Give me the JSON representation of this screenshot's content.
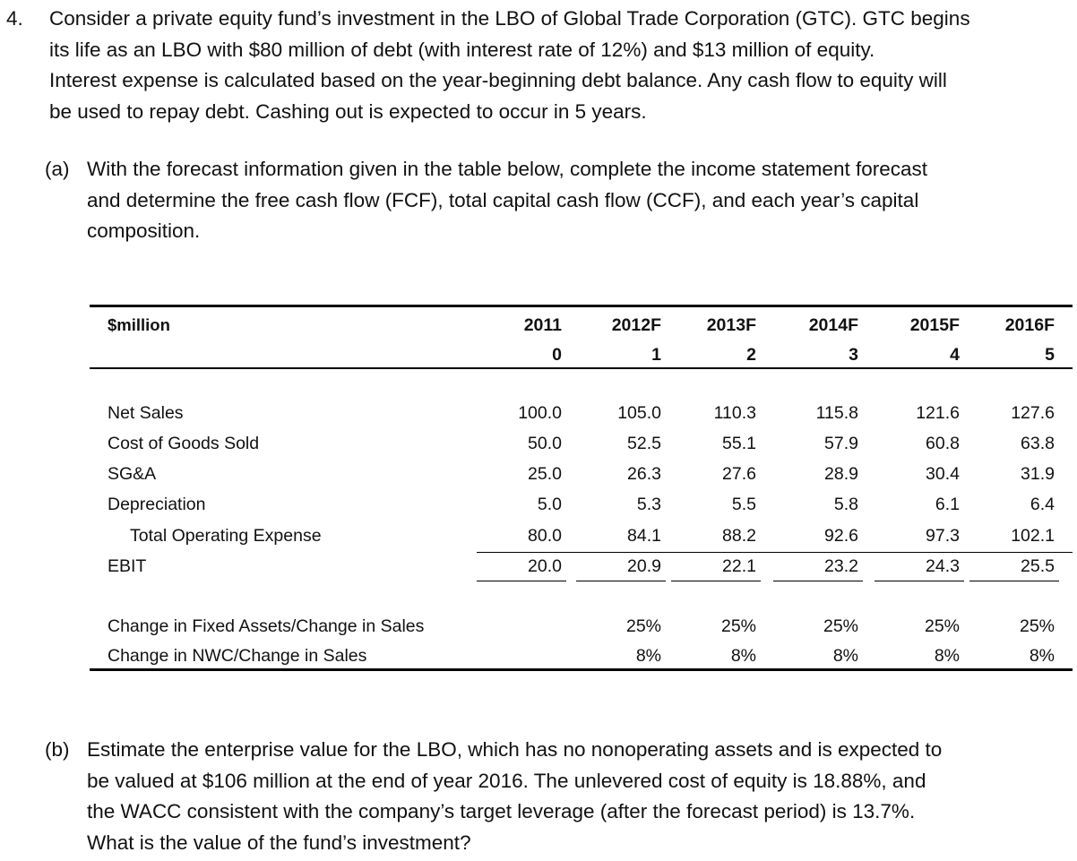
{
  "question": {
    "number": "4.",
    "lines": [
      "Consider a private equity fund’s investment in the LBO of Global Trade Corporation (GTC). GTC begins",
      "its life as an LBO with $80 million of debt (with interest rate of 12%) and $13 million of equity.",
      "Interest expense is calculated based on the year-beginning debt balance. Any cash flow to equity will",
      "be used to repay debt. Cashing out is expected to occur in 5 years."
    ]
  },
  "part_a": {
    "label": "(a)",
    "lines": [
      "With the forecast information given in the table below, complete the income statement forecast",
      "and determine the free cash flow (FCF), total capital cash flow (CCF), and each year’s capital",
      "composition."
    ]
  },
  "table": {
    "unit_label": "$million",
    "years": [
      "2011",
      "2012F",
      "2013F",
      "2014F",
      "2015F",
      "2016F"
    ],
    "periods": [
      "0",
      "1",
      "2",
      "3",
      "4",
      "5"
    ],
    "rows": [
      {
        "label": "Net Sales",
        "values": [
          "100.0",
          "105.0",
          "110.3",
          "115.8",
          "121.6",
          "127.6"
        ]
      },
      {
        "label": "Cost of Goods Sold",
        "values": [
          "50.0",
          "52.5",
          "55.1",
          "57.9",
          "60.8",
          "63.8"
        ]
      },
      {
        "label": "SG&A",
        "values": [
          "25.0",
          "26.3",
          "27.6",
          "28.9",
          "30.4",
          "31.9"
        ]
      },
      {
        "label": "Depreciation",
        "values": [
          "5.0",
          "5.3",
          "5.5",
          "5.8",
          "6.1",
          "6.4"
        ]
      },
      {
        "label": "Total Operating Expense",
        "values": [
          "80.0",
          "84.1",
          "88.2",
          "92.6",
          "97.3",
          "102.1"
        ]
      },
      {
        "label": "EBIT",
        "values": [
          "20.0",
          "20.9",
          "22.1",
          "23.2",
          "24.3",
          "25.5"
        ]
      }
    ],
    "ratio_rows": [
      {
        "label": "Change in Fixed Assets/Change in Sales",
        "values": [
          "",
          "25%",
          "25%",
          "25%",
          "25%",
          "25%"
        ]
      },
      {
        "label": "Change in NWC/Change in Sales",
        "values": [
          "",
          "8%",
          "8%",
          "8%",
          "8%",
          "8%"
        ]
      }
    ]
  },
  "part_b": {
    "label": "(b)",
    "lines": [
      "Estimate the enterprise value for the LBO, which has no nonoperating assets and is expected to",
      "be valued at $106 million at the end of year 2016. The unlevered cost of equity is 18.88%, and",
      "the WACC consistent with the company’s target leverage (after the forecast period) is 13.7%.",
      "What is the value of the fund’s investment?"
    ]
  }
}
